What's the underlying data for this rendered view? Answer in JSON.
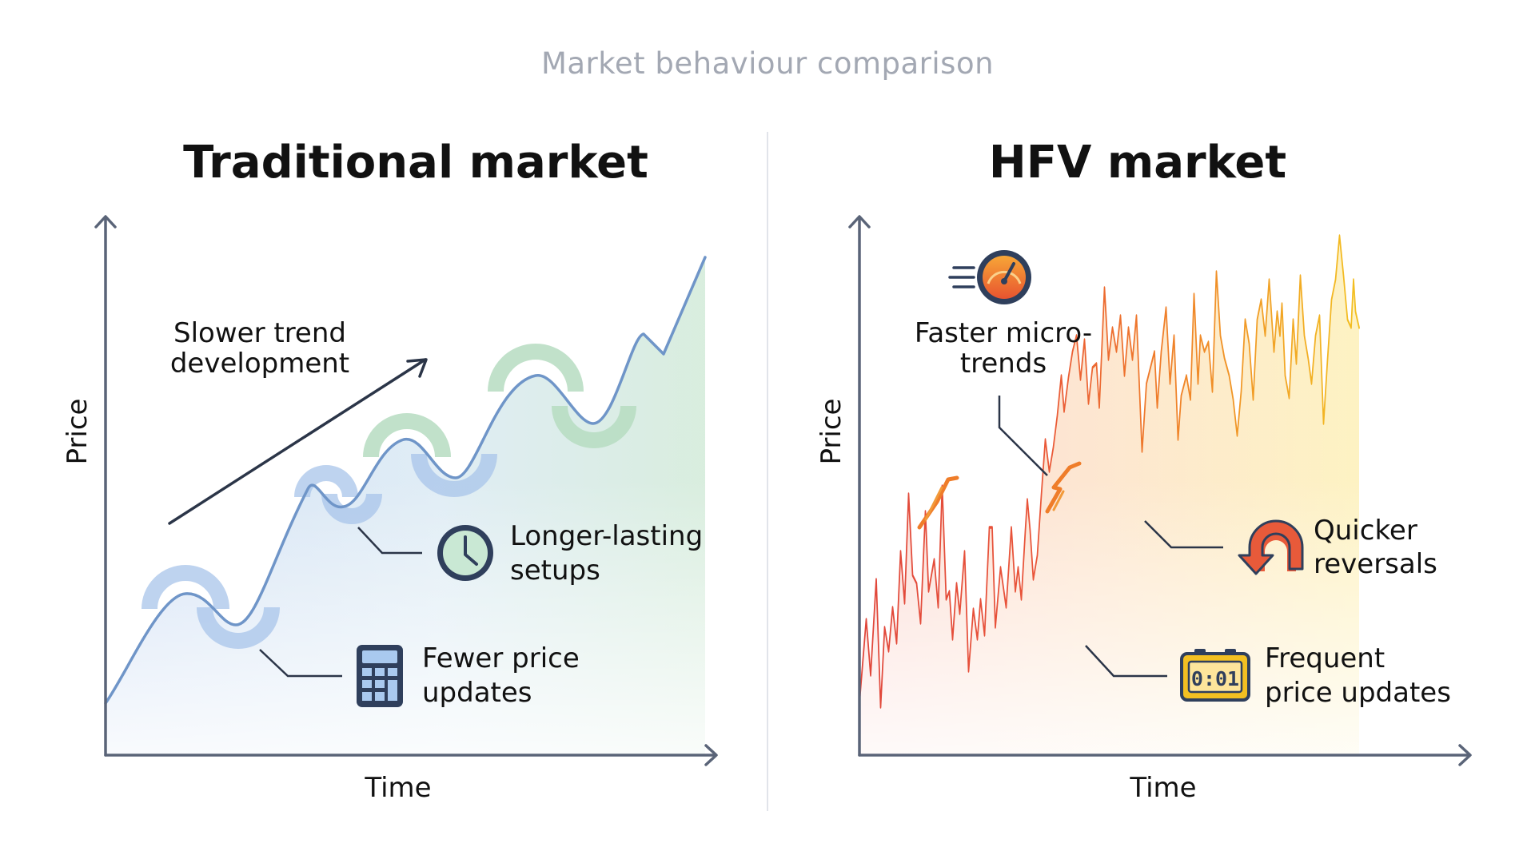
{
  "title": "Market behaviour comparison",
  "colors": {
    "axis": "#5a6478",
    "traditional_line": "#6f95c8",
    "hfv_red": "#e0463a",
    "hfv_orange": "#ef7d2a",
    "hfv_yellow": "#f3c022"
  },
  "panels": [
    {
      "id": "traditional",
      "title": "Traditional market",
      "y_axis_label": "Price",
      "x_axis_label": "Time",
      "annotations": [
        {
          "text": "Slower trend development",
          "lines": [
            "Slower trend",
            "development"
          ],
          "icon": "trend-arrow-icon"
        },
        {
          "text": "Longer-lasting setups",
          "lines": [
            "Longer-lasting",
            "setups"
          ],
          "icon": "clock-icon"
        },
        {
          "text": "Fewer price updates",
          "lines": [
            "Fewer price",
            "updates"
          ],
          "icon": "calculator-icon"
        }
      ]
    },
    {
      "id": "hfv",
      "title": "HFV market",
      "y_axis_label": "Price",
      "x_axis_label": "Time",
      "annotations": [
        {
          "text": "Faster micro-trends",
          "lines": [
            "Faster micro-",
            "trends"
          ],
          "icon": "speedometer-icon"
        },
        {
          "text": "Quicker reversals",
          "lines": [
            "Quicker",
            "reversals"
          ],
          "icon": "u-turn-arrow-icon"
        },
        {
          "text": "Frequent price updates",
          "lines": [
            "Frequent",
            "price updates"
          ],
          "icon": "digital-clock-icon"
        }
      ],
      "digital_clock_reading": "0:01"
    }
  ]
}
